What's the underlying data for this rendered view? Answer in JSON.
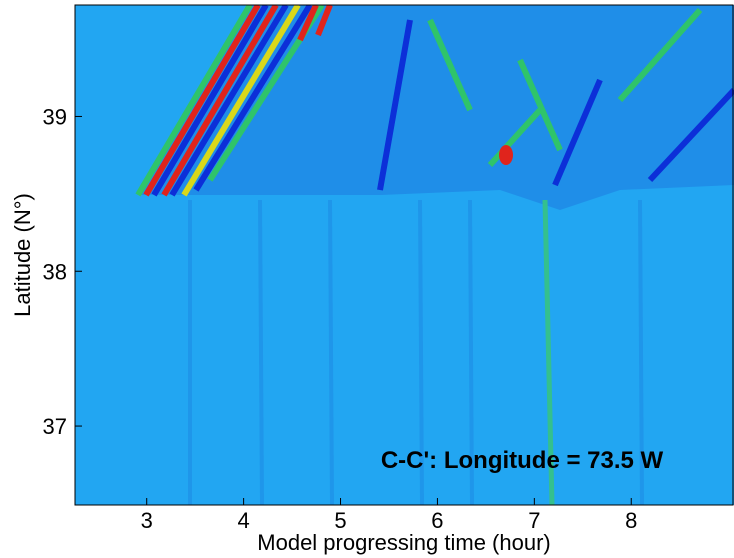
{
  "chart_data": {
    "type": "heatmap",
    "annotation": "C-C': Longitude = 73.5 W",
    "x_label": "Model progressing time (hour)",
    "y_label": "Latitude (N°)",
    "xlim": [
      2.26,
      9.05
    ],
    "xticks": [
      3,
      4,
      5,
      6,
      7,
      8
    ],
    "ylim": [
      36.49,
      39.72
    ],
    "yticks": [
      37,
      38,
      39
    ]
  }
}
